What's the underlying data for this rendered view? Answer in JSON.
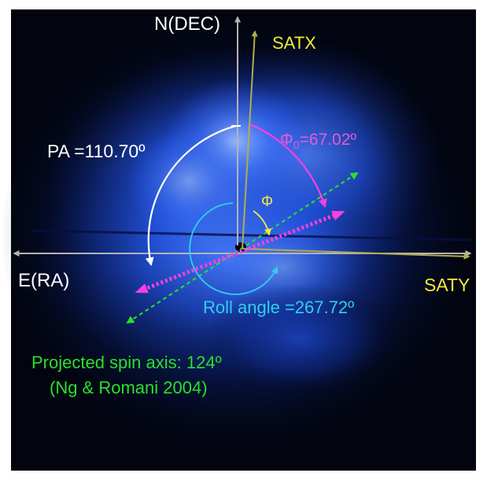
{
  "labels": {
    "north_axis": "N(DEC)",
    "east_axis": "E(RA)",
    "satx": "SATX",
    "saty": "SATY",
    "position_angle": "PA =110.70º",
    "phi0_symbol": "Φ",
    "phi0_subscript": "0",
    "phi0_value": "=67.02º",
    "phi": "Φ",
    "roll_angle": "Roll angle =267.72º",
    "spin_axis_line1": "Projected spin axis: 124º",
    "spin_axis_line2": "(Ng & Romani 2004)"
  },
  "angles_deg": {
    "position_angle": 110.7,
    "phi0": 67.02,
    "roll_angle": 267.72,
    "projected_spin_axis": 124
  },
  "colors": {
    "background": "#020510",
    "nebula": "#2f6cff",
    "sky_axes": "#b4b4b4",
    "sat_axes": "#b3ad4a",
    "sat_labels": "#f4ea3a",
    "position_angle": "#ffffff",
    "phi0": "#ff3fe0",
    "phi0_label": "#e55ad8",
    "roll_angle": "#2fd0ef",
    "spin_axis": "#29e02a",
    "north_label": "#ffffff"
  }
}
